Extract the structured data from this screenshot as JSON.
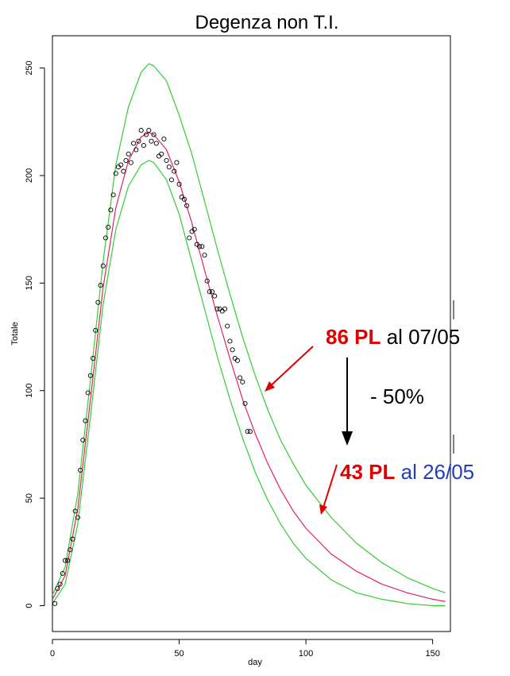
{
  "chart_data": {
    "type": "scatter",
    "title": "Degenza non T.I.",
    "xlabel": "day",
    "ylabel": "Totale",
    "xlim": [
      0,
      157
    ],
    "ylim": [
      -12,
      265
    ],
    "xticks": [
      0,
      50,
      100,
      150
    ],
    "yticks": [
      0,
      50,
      100,
      150,
      200,
      250
    ],
    "grid": false,
    "colors": {
      "observed": "#000000",
      "fit": "#e0245e",
      "band": "#33cc33",
      "arrow_red": "#e00000",
      "pl_red": "#e00000",
      "date_blue": "#1f3fbf"
    },
    "series": [
      {
        "x": [
          1,
          2,
          3,
          4,
          5,
          6,
          7,
          8,
          9,
          10,
          11,
          12,
          13,
          14,
          15,
          16,
          17,
          18,
          19,
          20,
          21,
          22,
          23,
          24,
          25,
          26,
          27,
          28,
          29,
          30,
          31,
          32,
          33,
          34,
          35,
          36,
          37,
          38,
          39,
          40,
          41,
          42,
          43,
          44,
          45,
          46,
          47,
          48,
          49,
          50,
          51,
          52,
          53,
          54,
          55,
          56,
          57,
          58,
          59,
          60,
          61,
          62,
          63,
          64,
          65,
          66,
          67,
          68,
          69,
          70,
          71,
          72,
          73,
          74,
          75,
          76,
          77,
          78
        ],
        "y": [
          1,
          8,
          10,
          15,
          21,
          21,
          26,
          31,
          44,
          41,
          63,
          77,
          86,
          99,
          107,
          115,
          128,
          141,
          149,
          158,
          171,
          176,
          184,
          191,
          201,
          204,
          205,
          202,
          207,
          210,
          206,
          215,
          212,
          216,
          221,
          214,
          219,
          221,
          216,
          219,
          215,
          209,
          210,
          217,
          207,
          204,
          198,
          202,
          206,
          196,
          190,
          189,
          186,
          171,
          174,
          175,
          168,
          167,
          167,
          163,
          151,
          146,
          146,
          144,
          138,
          138,
          137,
          138,
          130,
          123,
          119,
          115,
          114,
          106,
          104,
          94,
          81,
          81
        ]
      },
      {
        "x": [
          0,
          5,
          10,
          15,
          20,
          25,
          30,
          35,
          38,
          40,
          45,
          50,
          55,
          60,
          65,
          70,
          75,
          80,
          85,
          90,
          95,
          100,
          110,
          120,
          130,
          140,
          150,
          155
        ],
        "y": [
          3,
          14,
          45,
          96,
          148,
          185,
          207,
          218,
          220,
          219,
          212,
          197,
          178,
          156,
          135,
          115,
          96,
          80,
          66,
          54,
          44,
          36,
          24,
          16,
          10,
          6,
          3,
          2
        ]
      },
      {
        "x": [
          0,
          5,
          10,
          15,
          20,
          25,
          30,
          35,
          38,
          40,
          45,
          50,
          55,
          60,
          65,
          70,
          75,
          80,
          85,
          90,
          95,
          100,
          110,
          120,
          130,
          140,
          150,
          155
        ],
        "y": [
          1,
          10,
          38,
          88,
          140,
          175,
          195,
          205,
          207,
          206,
          198,
          182,
          160,
          138,
          116,
          96,
          78,
          62,
          49,
          38,
          29,
          22,
          12,
          6,
          3,
          1,
          0,
          0
        ]
      },
      {
        "x": [
          0,
          5,
          10,
          15,
          20,
          25,
          30,
          35,
          38,
          40,
          45,
          50,
          55,
          60,
          65,
          70,
          75,
          80,
          85,
          90,
          95,
          100,
          110,
          120,
          130,
          140,
          150,
          155
        ],
        "y": [
          5,
          18,
          52,
          105,
          160,
          205,
          232,
          248,
          252,
          251,
          244,
          228,
          210,
          188,
          166,
          145,
          125,
          107,
          91,
          77,
          66,
          56,
          41,
          29,
          20,
          13,
          8,
          6
        ]
      }
    ]
  },
  "annotations": {
    "upper_pl": "86 PL",
    "upper_date": "al 07/05",
    "change": "- 50%",
    "lower_pl": "43 PL",
    "lower_date": "al 26/05"
  }
}
